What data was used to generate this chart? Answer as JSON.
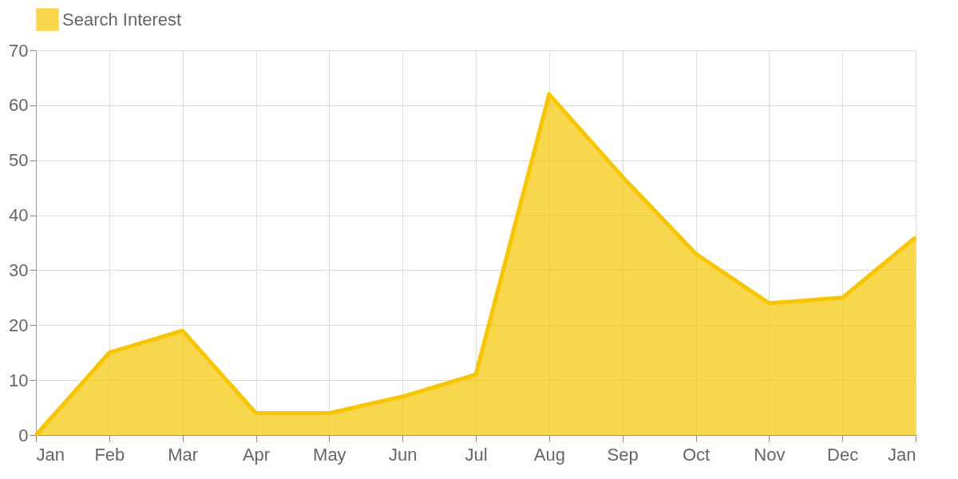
{
  "chart_data": {
    "type": "area",
    "categories": [
      "Jan",
      "Feb",
      "Mar",
      "Apr",
      "May",
      "Jun",
      "Jul",
      "Aug",
      "Sep",
      "Oct",
      "Nov",
      "Dec",
      "Jan"
    ],
    "series": [
      {
        "name": "Search Interest",
        "color": "#f7c600",
        "values": [
          0,
          15,
          19,
          4,
          4,
          7,
          11,
          62,
          47,
          33,
          24,
          25,
          36
        ]
      }
    ],
    "ylim": [
      0,
      70
    ],
    "yticks": [
      0,
      10,
      20,
      30,
      40,
      50,
      60,
      70
    ],
    "grid": true,
    "legend": "top",
    "line_style": "solid"
  }
}
